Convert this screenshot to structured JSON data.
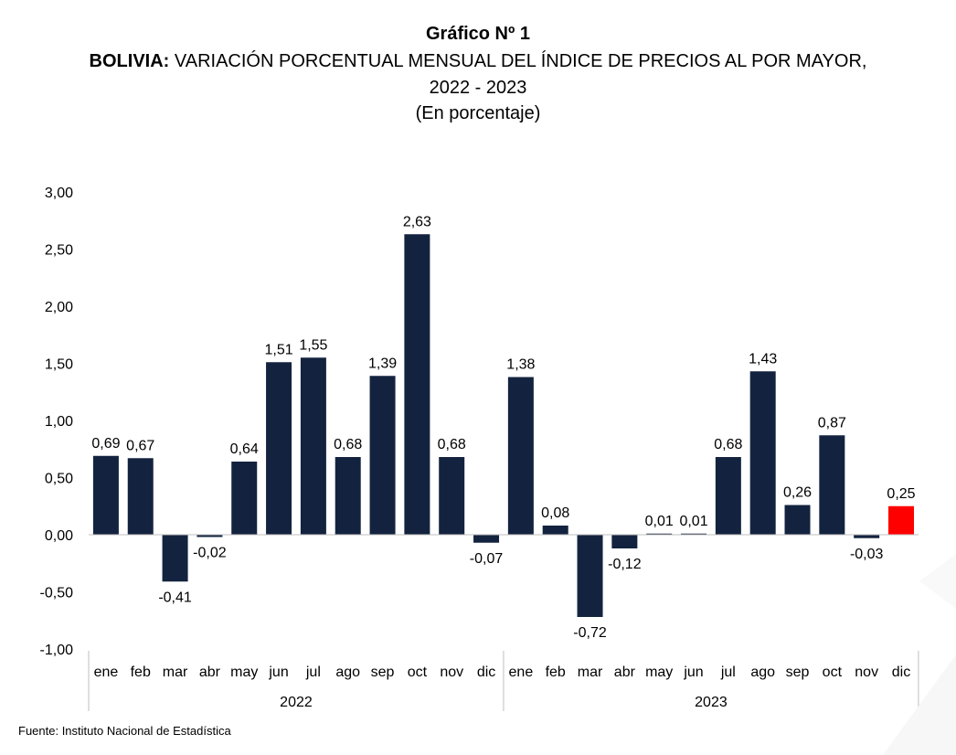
{
  "header": {
    "title": "Gráfico Nº 1",
    "subtitle_bold": "BOLIVIA:",
    "subtitle_rest": " VARIACIÓN PORCENTUAL MENSUAL DEL ÍNDICE DE PRECIOS AL POR MAYOR,",
    "period": "2022 - 2023",
    "units": "(En porcentaje)"
  },
  "source": "Fuente: Instituto Nacional de Estadística",
  "chart_data": {
    "type": "bar",
    "categories": [
      "ene",
      "feb",
      "mar",
      "abr",
      "may",
      "jun",
      "jul",
      "ago",
      "sep",
      "oct",
      "nov",
      "dic",
      "ene",
      "feb",
      "mar",
      "abr",
      "may",
      "jun",
      "jul",
      "ago",
      "sep",
      "oct",
      "nov",
      "dic"
    ],
    "groups": [
      {
        "label": "2022",
        "start": 0,
        "end": 11
      },
      {
        "label": "2023",
        "start": 12,
        "end": 23
      }
    ],
    "values": [
      0.69,
      0.67,
      -0.41,
      -0.02,
      0.64,
      1.51,
      1.55,
      0.68,
      1.39,
      2.63,
      0.68,
      -0.07,
      1.38,
      0.08,
      -0.72,
      -0.12,
      0.01,
      0.01,
      0.68,
      1.43,
      0.26,
      0.87,
      -0.03,
      0.25
    ],
    "value_labels": [
      "0,69",
      "0,67",
      "-0,41",
      "-0,02",
      "0,64",
      "1,51",
      "1,55",
      "0,68",
      "1,39",
      "2,63",
      "0,68",
      "-0,07",
      "1,38",
      "0,08",
      "-0,72",
      "-0,12",
      "0,01",
      "0,01",
      "0,68",
      "1,43",
      "0,26",
      "0,87",
      "-0,03",
      "0,25"
    ],
    "yticks": [
      3.0,
      2.5,
      2.0,
      1.5,
      1.0,
      0.5,
      0.0,
      -0.5,
      -1.0
    ],
    "ytick_labels": [
      "3,00",
      "2,50",
      "2,00",
      "1,50",
      "1,00",
      "0,50",
      "0,00",
      "-0,50",
      "-1,00"
    ],
    "ylim": [
      -1.0,
      3.0
    ],
    "grid": false,
    "colors": {
      "bar": "#13233f",
      "highlight": "#ff0000",
      "axis": "#bfbfbf"
    },
    "highlight_index": 23
  }
}
